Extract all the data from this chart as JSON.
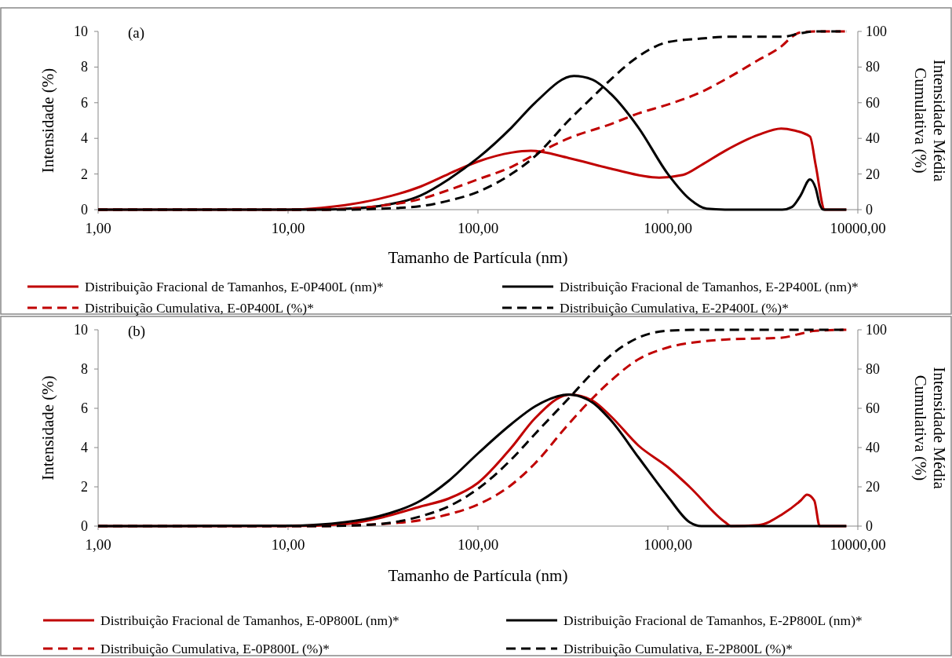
{
  "chart_data": [
    {
      "type": "line",
      "annotations": [
        "(a)"
      ],
      "xlabel": "Tamanho de Partícula (nm)",
      "ylabel": "Intensidade (%)",
      "y2label": "Intensidade Média\nCumulativa (%)",
      "log": "x",
      "legend": "bottom",
      "grid": false,
      "xlim": [
        1,
        10000
      ],
      "xticks": [
        {
          "value": 1,
          "label": "1,00"
        },
        {
          "value": 10,
          "label": "10,00"
        },
        {
          "value": 100,
          "label": "100,00"
        },
        {
          "value": 1000,
          "label": "1000,00"
        },
        {
          "value": 10000,
          "label": "10000,00"
        }
      ],
      "ylim": [
        0,
        10
      ],
      "yticks": [
        0,
        2,
        4,
        6,
        8,
        10
      ],
      "y2lim": [
        0,
        100
      ],
      "y2ticks": [
        0,
        20,
        40,
        60,
        80,
        100
      ],
      "series": [
        {
          "name": "Distribuição Fracional de Tamanhos, E-0P400L (nm)*",
          "color": "#c00000",
          "line_style": "solid",
          "x": [
            1,
            10,
            15,
            20,
            30,
            50,
            70,
            100,
            150,
            190,
            300,
            500,
            900,
            1200,
            1500,
            2000,
            3000,
            3950,
            4600,
            5600,
            6000,
            6700,
            8700
          ],
          "values": [
            0,
            0,
            0.1,
            0.25,
            0.6,
            1.3,
            2.0,
            2.7,
            3.2,
            3.3,
            2.9,
            2.3,
            1.8,
            1.95,
            2.5,
            3.3,
            4.2,
            4.55,
            4.45,
            4.1,
            2.5,
            0,
            0
          ]
        },
        {
          "name": "Distribuição Fracional de Tamanhos, E-2P400L (nm)*",
          "color": "#000000",
          "line_style": "solid",
          "x": [
            1,
            15,
            20,
            30,
            50,
            70,
            100,
            150,
            200,
            320,
            400,
            500,
            700,
            1000,
            1300,
            1600,
            2000,
            4000,
            4500,
            5000,
            5600,
            6000,
            6300,
            6600,
            8700
          ],
          "values": [
            0,
            0,
            0.05,
            0.2,
            0.8,
            1.7,
            2.9,
            4.6,
            6.0,
            7.5,
            7.3,
            6.5,
            4.6,
            2.0,
            0.6,
            0.05,
            0,
            0,
            0.15,
            0.8,
            1.7,
            1.2,
            0.3,
            0,
            0
          ]
        },
        {
          "name": "Distribuição Cumulativa, E-0P400L (%)*",
          "color": "#c00000",
          "line_style": "dashed",
          "axis": "y2",
          "x": [
            1,
            15,
            20,
            30,
            50,
            70,
            100,
            150,
            200,
            300,
            500,
            700,
            1000,
            1500,
            2000,
            3000,
            4000,
            4500,
            5000,
            6000,
            8700
          ],
          "values": [
            0,
            0,
            0.5,
            2,
            6,
            11,
            17,
            24,
            31,
            40,
            48,
            54,
            59,
            66,
            73,
            84,
            92,
            97,
            99.5,
            100,
            100
          ]
        },
        {
          "name": "Distribuição Cumulativa, E-2P400L  (%)*",
          "color": "#000000",
          "line_style": "dashed",
          "axis": "y2",
          "x": [
            1,
            20,
            30,
            50,
            70,
            100,
            150,
            200,
            300,
            400,
            500,
            700,
            1000,
            1500,
            2000,
            4000,
            5000,
            6000,
            8700
          ],
          "values": [
            0,
            0,
            0.5,
            2,
            5,
            10,
            20,
            30,
            50,
            63,
            73,
            86,
            94,
            96,
            97,
            97,
            99,
            100,
            100
          ]
        }
      ]
    },
    {
      "type": "line",
      "annotations": [
        "(b)"
      ],
      "xlabel": "Tamanho de Partícula (nm)",
      "ylabel": "Intensidade (%)",
      "y2label": "Intensidade Média\nCumulativa (%)",
      "log": "x",
      "legend": "bottom",
      "grid": false,
      "xlim": [
        1,
        10000
      ],
      "xticks": [
        {
          "value": 1,
          "label": "1,00"
        },
        {
          "value": 10,
          "label": "10,00"
        },
        {
          "value": 100,
          "label": "100,00"
        },
        {
          "value": 1000,
          "label": "1000,00"
        },
        {
          "value": 10000,
          "label": "10000,00"
        }
      ],
      "ylim": [
        0,
        10
      ],
      "yticks": [
        0,
        2,
        4,
        6,
        8,
        10
      ],
      "y2lim": [
        0,
        100
      ],
      "y2ticks": [
        0,
        20,
        40,
        60,
        80,
        100
      ],
      "series": [
        {
          "name": "Distribuição Fracional de Tamanhos, E-0P800L (nm)*",
          "color": "#c00000",
          "line_style": "solid",
          "x": [
            1,
            10,
            20,
            30,
            50,
            70,
            100,
            150,
            200,
            305,
            400,
            500,
            700,
            1000,
            1300,
            2000,
            2150,
            3000,
            4000,
            5000,
            5400,
            5900,
            6300,
            8700
          ],
          "values": [
            0,
            0,
            0.1,
            0.4,
            1.0,
            1.4,
            2.2,
            4.0,
            5.5,
            6.7,
            6.4,
            5.6,
            4.1,
            3.0,
            2.0,
            0.2,
            0,
            0.05,
            0.6,
            1.3,
            1.6,
            1.3,
            0,
            0
          ]
        },
        {
          "name": "Distribuição Fracional de Tamanhos, E-2P800L (nm)*",
          "color": "#000000",
          "line_style": "solid",
          "x": [
            1,
            10,
            20,
            30,
            50,
            70,
            100,
            150,
            200,
            300,
            400,
            500,
            700,
            1000,
            1300,
            1500,
            8700
          ],
          "values": [
            0,
            0.02,
            0.2,
            0.5,
            1.3,
            2.3,
            3.7,
            5.2,
            6.1,
            6.7,
            6.3,
            5.4,
            3.5,
            1.5,
            0.2,
            0,
            0
          ]
        },
        {
          "name": "Distribuição Cumulativa, E-0P800L (%)*",
          "color": "#c00000",
          "line_style": "dashed",
          "axis": "y2",
          "x": [
            1,
            15,
            20,
            30,
            50,
            70,
            100,
            150,
            200,
            300,
            400,
            500,
            700,
            1000,
            1500,
            2000,
            4000,
            5000,
            6000,
            8700
          ],
          "values": [
            0,
            0,
            0.3,
            1,
            3,
            6,
            11,
            21,
            32,
            52,
            65,
            74,
            85,
            91,
            94,
            95,
            96,
            98,
            99.5,
            100
          ]
        },
        {
          "name": "Distribuição Cumulativa, E-2P800L  (%)*",
          "color": "#000000",
          "line_style": "dashed",
          "axis": "y2",
          "x": [
            1,
            15,
            20,
            30,
            50,
            70,
            100,
            150,
            200,
            300,
            400,
            500,
            700,
            1000,
            1500,
            8700
          ],
          "values": [
            0,
            0,
            0.2,
            1,
            5,
            10,
            19,
            34,
            47,
            65,
            78,
            87,
            96,
            99.5,
            100,
            100
          ]
        }
      ]
    }
  ]
}
